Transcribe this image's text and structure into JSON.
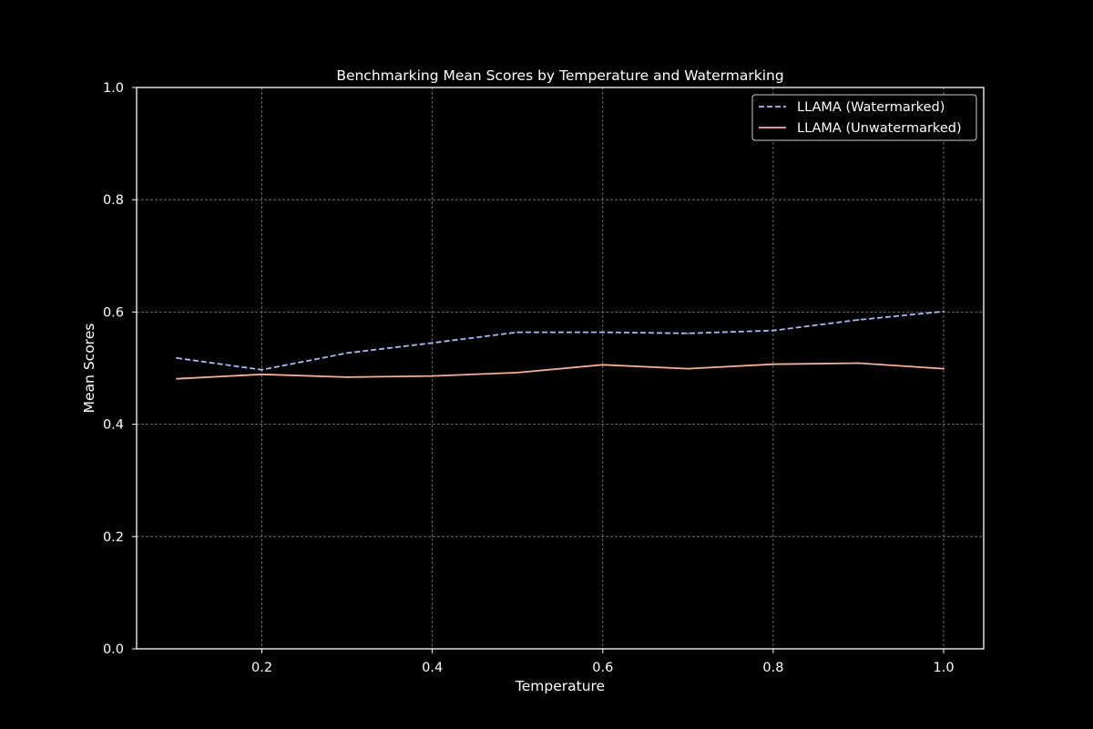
{
  "chart_data": {
    "type": "line",
    "title": "Benchmarking Mean Scores by Temperature and Watermarking",
    "xlabel": "Temperature",
    "ylabel": "Mean Scores",
    "x": [
      0.1,
      0.2,
      0.3,
      0.4,
      0.5,
      0.6,
      0.7,
      0.8,
      0.9,
      1.0
    ],
    "xlim": [
      0.053,
      1.047
    ],
    "ylim": [
      0.0,
      1.0
    ],
    "xticks": [
      0.2,
      0.4,
      0.6,
      0.8,
      1.0
    ],
    "xtick_labels": [
      "0.2",
      "0.4",
      "0.6",
      "0.8",
      "1.0"
    ],
    "yticks": [
      0.0,
      0.2,
      0.4,
      0.6,
      0.8,
      1.0
    ],
    "ytick_labels": [
      "0.0",
      "0.2",
      "0.4",
      "0.6",
      "0.8",
      "1.0"
    ],
    "grid": true,
    "legend_position": "top-right",
    "series": [
      {
        "name": "LLAMA (Watermarked)",
        "color": "#a9bdf2",
        "style": "dashed",
        "values": [
          0.518,
          0.497,
          0.527,
          0.545,
          0.564,
          0.564,
          0.562,
          0.567,
          0.586,
          0.601
        ]
      },
      {
        "name": "LLAMA (Unwatermarked)",
        "color": "#f5b09a",
        "style": "solid",
        "values": [
          0.481,
          0.489,
          0.484,
          0.486,
          0.492,
          0.506,
          0.499,
          0.507,
          0.509,
          0.499
        ]
      }
    ]
  },
  "colors": {
    "background": "#000000",
    "text": "#ffffff",
    "axis": "#ffffff",
    "grid": "#7f7f7f"
  }
}
